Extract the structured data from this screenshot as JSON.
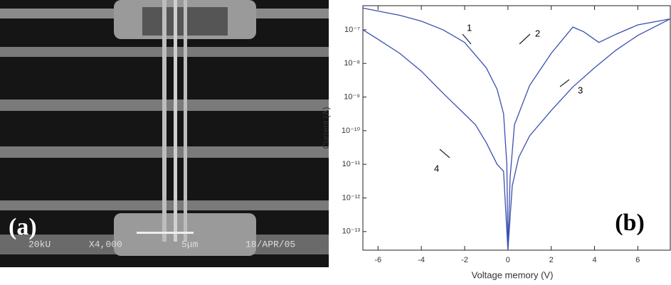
{
  "image_panel": {
    "label": "(a)",
    "caption": [
      "20kU",
      "X4,000",
      "5μm",
      "18/APR/05"
    ]
  },
  "chart_data": {
    "type": "line",
    "panel_label": "(b)",
    "xlabel": "Voltage memory (V)",
    "ylabel": "Current (A)",
    "log_y": true,
    "xlim": [
      -6.7,
      7.5
    ],
    "ylim": [
      2.8e-14,
      5.2e-07
    ],
    "xticks": [
      -6,
      -4,
      -2,
      0,
      2,
      4,
      6
    ],
    "yticks": [
      {
        "value": 1e-07,
        "label": "10⁻⁷"
      },
      {
        "value": 1e-08,
        "label": "10⁻⁸"
      },
      {
        "value": 1e-09,
        "label": "10⁻⁹"
      },
      {
        "value": 1e-10,
        "label": "10⁻¹⁰"
      },
      {
        "value": 1e-11,
        "label": "10⁻¹¹"
      },
      {
        "value": 1e-12,
        "label": "10⁻¹²"
      },
      {
        "value": 1e-13,
        "label": "10⁻¹³"
      }
    ],
    "annotations": [
      "1",
      "2",
      "3",
      "4"
    ],
    "series": [
      {
        "color": "#3b4fb0",
        "x": [
          -6.7,
          -5,
          -4,
          -3,
          -2,
          -1,
          -0.5,
          -0.2,
          -0.05,
          0,
          0.1,
          0.3,
          1,
          2,
          3,
          3.5,
          4.2,
          5,
          6,
          7.5
        ],
        "values": [
          4.4e-07,
          2.7e-07,
          1.8e-07,
          1e-07,
          4.2e-08,
          7.4e-09,
          1.7e-09,
          3.2e-10,
          1e-11,
          2.8e-14,
          4e-12,
          1.5e-10,
          2.2e-09,
          2e-08,
          1.2e-07,
          8.7e-08,
          4.2e-08,
          7.4e-08,
          1.4e-07,
          2.1e-07
        ]
      },
      {
        "color": "#3b4fb0",
        "x": [
          7.5,
          6,
          5,
          4,
          3,
          2,
          1,
          0.5,
          0.2,
          0,
          -0.2,
          -0.5,
          -1,
          -1.5,
          -2,
          -3,
          -4,
          -5,
          -6,
          -6.7
        ],
        "values": [
          2.1e-07,
          6.8e-08,
          2.5e-08,
          7.4e-09,
          2e-09,
          4e-10,
          7e-11,
          1.6e-11,
          2.3e-12,
          2.8e-14,
          6.2e-12,
          1e-11,
          4.4e-11,
          1.5e-10,
          3.1e-10,
          1.3e-09,
          5.9e-09,
          2e-08,
          5.2e-08,
          1e-07
        ]
      }
    ]
  }
}
